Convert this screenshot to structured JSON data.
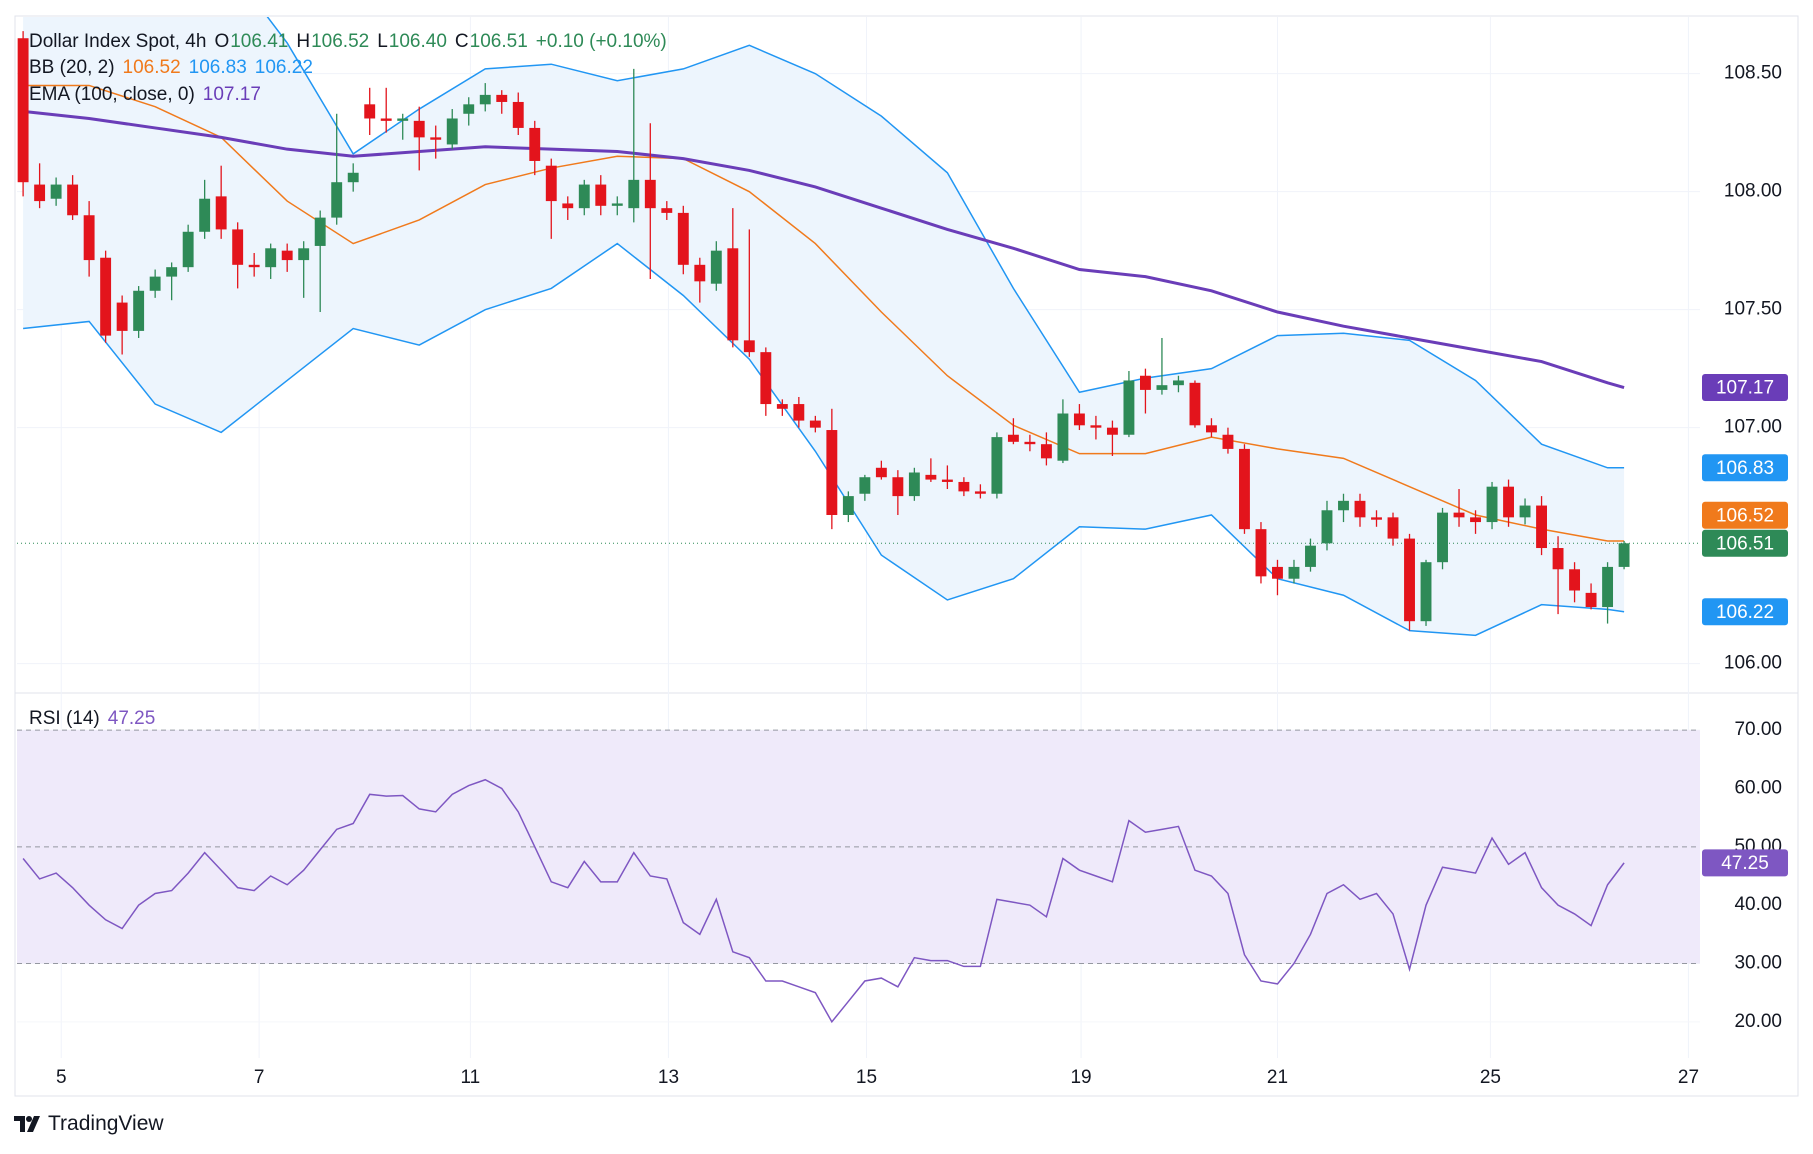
{
  "chart_data": {
    "type": "candlestick",
    "title": "Dollar Index Spot, 4h",
    "ohlc_labels": [
      "O",
      "H",
      "L",
      "C"
    ],
    "ohlc_value_labels": [
      "106.41",
      "106.52",
      "106.40",
      "106.51"
    ],
    "change_label": "+0.10 (+0.10%)",
    "source": "TradingView",
    "up_color": "#2e8a57",
    "down_color": "#e3141c",
    "open": [
      108.65,
      108.03,
      107.97,
      108.03,
      107.9,
      107.72,
      107.53,
      107.41,
      107.58,
      107.64,
      107.68,
      107.83,
      107.98,
      107.84,
      107.69,
      107.68,
      107.75,
      107.71,
      107.77,
      107.89,
      108.04,
      108.37,
      108.31,
      108.3,
      108.3,
      108.23,
      108.2,
      108.33,
      108.37,
      108.41,
      108.38,
      108.27,
      108.11,
      107.95,
      107.93,
      108.03,
      107.94,
      107.93,
      108.05,
      107.93,
      107.91,
      107.69,
      107.61,
      107.76,
      107.37,
      107.32,
      107.1,
      107.1,
      107.03,
      106.99,
      106.63,
      106.72,
      106.83,
      106.79,
      106.71,
      106.8,
      106.78,
      106.77,
      106.73,
      106.72,
      106.97,
      106.94,
      106.93,
      106.86,
      107.06,
      107.01,
      107.0,
      106.97,
      107.22,
      107.16,
      107.18,
      107.19,
      107.01,
      106.97,
      106.91,
      106.57,
      106.41,
      106.36,
      106.41,
      106.51,
      106.65,
      106.69,
      106.62,
      106.62,
      106.53,
      106.18,
      106.43,
      106.64,
      106.62,
      106.6,
      106.75,
      106.62,
      106.67,
      106.49,
      106.4,
      106.3,
      106.24,
      106.41
    ],
    "high": [
      108.68,
      108.12,
      108.06,
      108.07,
      107.96,
      107.75,
      107.56,
      107.6,
      107.67,
      107.7,
      107.86,
      108.05,
      108.11,
      107.87,
      107.74,
      107.78,
      107.78,
      107.79,
      107.92,
      108.33,
      108.12,
      108.44,
      108.44,
      108.33,
      108.36,
      108.28,
      108.35,
      108.4,
      108.46,
      108.43,
      108.42,
      108.3,
      108.14,
      107.98,
      108.05,
      108.07,
      107.98,
      108.52,
      108.29,
      107.96,
      107.94,
      107.72,
      107.79,
      107.93,
      107.84,
      107.34,
      107.12,
      107.13,
      107.05,
      107.08,
      106.73,
      106.8,
      106.86,
      106.82,
      106.83,
      106.87,
      106.84,
      106.79,
      106.76,
      106.98,
      107.04,
      106.97,
      106.98,
      107.12,
      107.1,
      107.05,
      107.03,
      107.24,
      107.25,
      107.38,
      107.22,
      107.2,
      107.04,
      107.0,
      106.93,
      106.6,
      106.44,
      106.44,
      106.53,
      106.69,
      106.72,
      106.72,
      106.65,
      106.64,
      106.55,
      106.44,
      106.66,
      106.74,
      106.65,
      106.77,
      106.78,
      106.7,
      106.71,
      106.54,
      106.43,
      106.34,
      106.43,
      106.52
    ],
    "low": [
      107.98,
      107.93,
      107.94,
      107.88,
      107.64,
      107.36,
      107.31,
      107.38,
      107.55,
      107.54,
      107.66,
      107.8,
      107.8,
      107.59,
      107.64,
      107.63,
      107.66,
      107.55,
      107.49,
      107.86,
      108.0,
      108.24,
      108.25,
      108.22,
      108.09,
      108.14,
      108.18,
      108.28,
      108.34,
      108.33,
      108.24,
      108.07,
      107.8,
      107.88,
      107.9,
      107.9,
      107.9,
      107.87,
      107.63,
      107.88,
      107.65,
      107.53,
      107.58,
      107.34,
      107.3,
      107.05,
      107.05,
      107.0,
      106.98,
      106.57,
      106.6,
      106.69,
      106.78,
      106.63,
      106.69,
      106.77,
      106.74,
      106.71,
      106.7,
      106.7,
      106.93,
      106.9,
      106.84,
      106.85,
      106.99,
      106.95,
      106.88,
      106.96,
      107.06,
      107.14,
      107.15,
      107.0,
      106.96,
      106.89,
      106.55,
      106.34,
      106.29,
      106.34,
      106.39,
      106.48,
      106.6,
      106.58,
      106.58,
      106.5,
      106.14,
      106.16,
      106.4,
      106.58,
      106.55,
      106.57,
      106.58,
      106.59,
      106.46,
      106.21,
      106.26,
      106.23,
      106.17,
      106.4
    ],
    "close": [
      108.04,
      107.96,
      108.03,
      107.9,
      107.71,
      107.39,
      107.41,
      107.58,
      107.64,
      107.68,
      107.83,
      107.97,
      107.84,
      107.69,
      107.68,
      107.76,
      107.71,
      107.76,
      107.89,
      108.04,
      108.08,
      108.31,
      108.3,
      108.31,
      108.23,
      108.22,
      108.31,
      108.37,
      108.41,
      108.38,
      108.27,
      108.13,
      107.96,
      107.93,
      108.03,
      107.94,
      107.95,
      108.05,
      107.93,
      107.91,
      107.69,
      107.62,
      107.75,
      107.37,
      107.32,
      107.1,
      107.08,
      107.03,
      107.0,
      106.63,
      106.71,
      106.79,
      106.79,
      106.71,
      106.81,
      106.78,
      106.77,
      106.73,
      106.72,
      106.96,
      106.94,
      106.93,
      106.87,
      107.06,
      107.01,
      107.0,
      106.97,
      107.2,
      107.16,
      107.18,
      107.2,
      107.01,
      106.98,
      106.91,
      106.57,
      106.37,
      106.36,
      106.41,
      106.5,
      106.65,
      106.69,
      106.62,
      106.61,
      106.53,
      106.18,
      106.43,
      106.64,
      106.62,
      106.6,
      106.75,
      106.62,
      106.67,
      106.49,
      106.4,
      106.31,
      106.24,
      106.41,
      106.51
    ],
    "ylim": [
      105.88,
      108.74
    ],
    "yticks": [
      {
        "value": 106,
        "label": "106.00"
      },
      {
        "value": 107,
        "label": "107.00"
      },
      {
        "value": 107.5,
        "label": "107.50"
      },
      {
        "value": 108,
        "label": "108.00"
      },
      {
        "value": 108.5,
        "label": "108.50"
      }
    ],
    "xlim": [
      -0.37,
      101.6
    ],
    "xticks": [
      {
        "value": 2.31,
        "label": "5"
      },
      {
        "value": 14.3,
        "label": "7"
      },
      {
        "value": 27.1,
        "label": "11"
      },
      {
        "value": 39.1,
        "label": "13"
      },
      {
        "value": 51.1,
        "label": "15"
      },
      {
        "value": 64.1,
        "label": "19"
      },
      {
        "value": 76.0,
        "label": "21"
      },
      {
        "value": 88.9,
        "label": "25"
      },
      {
        "value": 100.9,
        "label": "27"
      }
    ],
    "indicator_x": [
      0,
      4,
      8,
      12,
      16,
      20,
      24,
      28,
      32,
      36,
      40,
      44,
      48,
      52,
      56,
      60,
      64,
      68,
      72,
      76,
      80,
      84,
      88,
      92,
      96,
      97
    ],
    "bollinger": {
      "name": "BB (20, 2)",
      "fill": "#edf5fd",
      "middle": {
        "color": "#f07a1c",
        "values": [
          108.45,
          108.45,
          108.36,
          108.23,
          107.96,
          107.78,
          107.88,
          108.03,
          108.1,
          108.15,
          108.14,
          108.0,
          107.78,
          107.49,
          107.22,
          107.01,
          106.89,
          106.89,
          106.96,
          106.91,
          106.87,
          106.75,
          106.63,
          106.57,
          106.52,
          106.52
        ]
      },
      "upper": {
        "color": "#2196f3",
        "values": [
          109.6,
          109.4,
          109.2,
          109.0,
          108.63,
          108.16,
          108.35,
          108.52,
          108.54,
          108.47,
          108.52,
          108.62,
          108.5,
          108.32,
          108.08,
          107.59,
          107.15,
          107.21,
          107.25,
          107.39,
          107.4,
          107.37,
          107.2,
          106.93,
          106.83,
          106.83
        ]
      },
      "lower": {
        "color": "#2196f3",
        "values": [
          107.42,
          107.45,
          107.1,
          106.98,
          107.2,
          107.42,
          107.35,
          107.5,
          107.59,
          107.78,
          107.56,
          107.29,
          106.9,
          106.46,
          106.27,
          106.36,
          106.58,
          106.57,
          106.63,
          106.36,
          106.29,
          106.14,
          106.12,
          106.25,
          106.23,
          106.22
        ]
      }
    },
    "ema": {
      "name": "EMA (100, close, 0)",
      "color": "#6a3db8",
      "values": [
        108.34,
        108.31,
        108.27,
        108.23,
        108.18,
        108.15,
        108.17,
        108.19,
        108.18,
        108.17,
        108.14,
        108.09,
        108.02,
        107.93,
        107.84,
        107.76,
        107.67,
        107.64,
        107.58,
        107.49,
        107.43,
        107.38,
        107.33,
        107.28,
        107.19,
        107.17
      ]
    },
    "rsi": {
      "type": "line",
      "name": "RSI (14)",
      "color": "#7e57c2",
      "band_fill": "#efeafa",
      "levels": [
        70,
        50,
        30
      ],
      "values": [
        48,
        44.5,
        45.5,
        43,
        40,
        37.5,
        36,
        40,
        42,
        42.5,
        45.5,
        49,
        46,
        43,
        42.5,
        45,
        43.5,
        46,
        49.5,
        53,
        54,
        59,
        58.7,
        58.8,
        56.5,
        56,
        59,
        60.5,
        61.5,
        60,
        56,
        50,
        44,
        43,
        47.5,
        44,
        44,
        49,
        45,
        44.5,
        37,
        35,
        41,
        32,
        31,
        27,
        27,
        26,
        25,
        20,
        23.5,
        27,
        27.5,
        26,
        31,
        30.5,
        30.5,
        29.5,
        29.5,
        41,
        40.5,
        40,
        38,
        48,
        46,
        45,
        44,
        54.5,
        52.5,
        53,
        53.5,
        46,
        45,
        42,
        31.5,
        27,
        26.5,
        30,
        35,
        42,
        43.5,
        41,
        42,
        38.5,
        29,
        40,
        46.5,
        46,
        45.5,
        51.5,
        47,
        49,
        43,
        40,
        38.5,
        36.5,
        43.5,
        47.25
      ],
      "ylim": [
        13.8,
        76.2
      ],
      "yticks": [
        {
          "value": 20,
          "label": "20.00"
        },
        {
          "value": 30,
          "label": "30.00"
        },
        {
          "value": 40,
          "label": "40.00"
        },
        {
          "value": 50,
          "label": "50.00"
        },
        {
          "value": 60,
          "label": "60.00"
        },
        {
          "value": 70,
          "label": "70.00"
        }
      ]
    }
  }
}
